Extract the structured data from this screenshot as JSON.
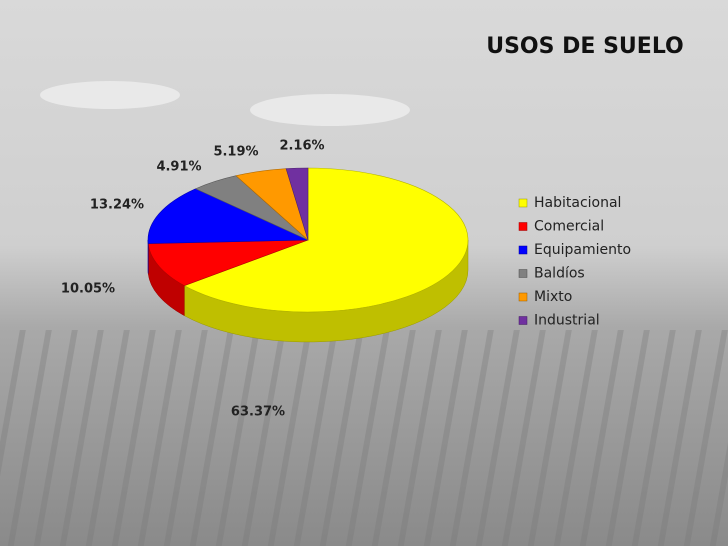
{
  "chart_data": {
    "type": "pie",
    "title": "USOS DE SUELO",
    "categories": [
      "Habitacional",
      "Comercial",
      "Equipamiento",
      "Baldíos",
      "Mixto",
      "Industrial"
    ],
    "values": [
      63.37,
      10.05,
      13.24,
      4.91,
      5.19,
      2.16
    ],
    "value_labels": [
      "63.37%",
      "10.05%",
      "13.24%",
      "4.91%",
      "5.19%",
      "2.16%"
    ],
    "colors": [
      "#ffff00",
      "#ff0000",
      "#0000ff",
      "#808080",
      "#ff9900",
      "#7030a0"
    ],
    "legend": "right"
  }
}
